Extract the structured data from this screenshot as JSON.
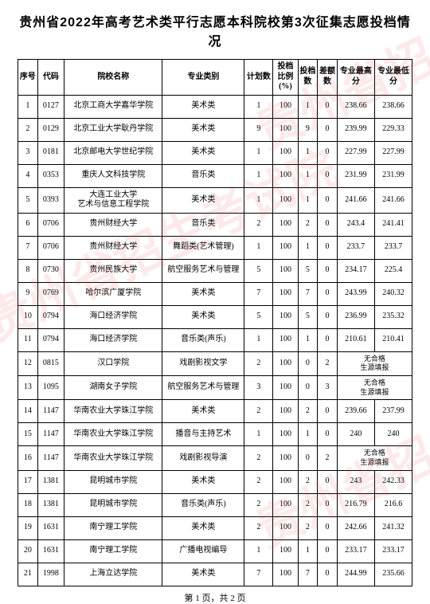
{
  "title": "贵州省2022年高考艺术类平行志愿本科院校第3次征集志愿投档情况",
  "watermark_text": "贵州省招生考试院",
  "footer": "第 1 页，共 2 页",
  "no_qualified_text": "无合格\n生源填报",
  "columns": {
    "seq": "序号",
    "code": "代码",
    "school": "院校名称",
    "major": "专业类别",
    "plan": "计划数",
    "ratio": "投档比例(%)",
    "cast": "投档数",
    "diff": "差额数",
    "high": "专业最高分",
    "low": "专业最低分"
  },
  "rows": [
    {
      "seq": "1",
      "code": "0127",
      "school": "北京工商大学嘉华学院",
      "major": "美术类",
      "plan": "1",
      "ratio": "100",
      "cast": "1",
      "diff": "0",
      "high": "238.66",
      "low": "238.66",
      "merged": false
    },
    {
      "seq": "2",
      "code": "0129",
      "school": "北京工业大学耿丹学院",
      "major": "美术类",
      "plan": "9",
      "ratio": "100",
      "cast": "9",
      "diff": "0",
      "high": "239.99",
      "low": "229.33",
      "merged": false
    },
    {
      "seq": "3",
      "code": "0181",
      "school": "北京邮电大学世纪学院",
      "major": "美术类",
      "plan": "1",
      "ratio": "100",
      "cast": "1",
      "diff": "0",
      "high": "227.99",
      "low": "227.99",
      "merged": false
    },
    {
      "seq": "4",
      "code": "0353",
      "school": "重庆人文科技学院",
      "major": "音乐类",
      "plan": "1",
      "ratio": "100",
      "cast": "1",
      "diff": "0",
      "high": "231.99",
      "low": "231.99",
      "merged": false
    },
    {
      "seq": "5",
      "code": "0393",
      "school": "大连工业大学\n艺术与信息工程学院",
      "major": "美术类",
      "plan": "1",
      "ratio": "100",
      "cast": "1",
      "diff": "0",
      "high": "241.66",
      "low": "241.66",
      "merged": false
    },
    {
      "seq": "6",
      "code": "0706",
      "school": "贵州财经大学",
      "major": "音乐类",
      "plan": "2",
      "ratio": "100",
      "cast": "2",
      "diff": "0",
      "high": "243.4",
      "low": "241.41",
      "merged": false
    },
    {
      "seq": "7",
      "code": "0706",
      "school": "贵州财经大学",
      "major": "舞蹈类(艺术管理)",
      "plan": "1",
      "ratio": "100",
      "cast": "1",
      "diff": "0",
      "high": "233.7",
      "low": "233.7",
      "merged": false
    },
    {
      "seq": "8",
      "code": "0730",
      "school": "贵州民族大学",
      "major": "航空服务艺术与管理",
      "plan": "5",
      "ratio": "100",
      "cast": "5",
      "diff": "0",
      "high": "234.17",
      "low": "225.4",
      "merged": false
    },
    {
      "seq": "9",
      "code": "0769",
      "school": "哈尔滨广厦学院",
      "major": "美术类",
      "plan": "7",
      "ratio": "100",
      "cast": "7",
      "diff": "0",
      "high": "243.99",
      "low": "240.32",
      "merged": false
    },
    {
      "seq": "10",
      "code": "0794",
      "school": "海口经济学院",
      "major": "美术类",
      "plan": "5",
      "ratio": "100",
      "cast": "5",
      "diff": "0",
      "high": "236.99",
      "low": "235.32",
      "merged": false
    },
    {
      "seq": "11",
      "code": "0794",
      "school": "海口经济学院",
      "major": "音乐类(声乐)",
      "plan": "1",
      "ratio": "100",
      "cast": "1",
      "diff": "0",
      "high": "210.61",
      "low": "210.41",
      "merged": false
    },
    {
      "seq": "12",
      "code": "0815",
      "school": "汉口学院",
      "major": "戏剧影视文学",
      "plan": "2",
      "ratio": "100",
      "cast": "0",
      "diff": "2",
      "high": "",
      "low": "",
      "merged": true
    },
    {
      "seq": "13",
      "code": "1095",
      "school": "湖南女子学院",
      "major": "航空服务艺术与管理",
      "plan": "3",
      "ratio": "100",
      "cast": "0",
      "diff": "3",
      "high": "",
      "low": "",
      "merged": true
    },
    {
      "seq": "14",
      "code": "1147",
      "school": "华南农业大学珠江学院",
      "major": "美术类",
      "plan": "2",
      "ratio": "100",
      "cast": "2",
      "diff": "0",
      "high": "239.66",
      "low": "237.99",
      "merged": false
    },
    {
      "seq": "15",
      "code": "1147",
      "school": "华南农业大学珠江学院",
      "major": "播音与主持艺术",
      "plan": "1",
      "ratio": "100",
      "cast": "1",
      "diff": "0",
      "high": "240",
      "low": "240",
      "merged": false
    },
    {
      "seq": "16",
      "code": "1147",
      "school": "华南农业大学珠江学院",
      "major": "戏剧影视导演",
      "plan": "2",
      "ratio": "100",
      "cast": "0",
      "diff": "2",
      "high": "",
      "low": "",
      "merged": true
    },
    {
      "seq": "17",
      "code": "1381",
      "school": "昆明城市学院",
      "major": "美术类",
      "plan": "2",
      "ratio": "100",
      "cast": "2",
      "diff": "0",
      "high": "243",
      "low": "242.33",
      "merged": false
    },
    {
      "seq": "18",
      "code": "1381",
      "school": "昆明城市学院",
      "major": "音乐类(声乐)",
      "plan": "2",
      "ratio": "100",
      "cast": "2",
      "diff": "0",
      "high": "216.79",
      "low": "216.6",
      "merged": false
    },
    {
      "seq": "19",
      "code": "1631",
      "school": "南宁理工学院",
      "major": "美术类",
      "plan": "2",
      "ratio": "100",
      "cast": "2",
      "diff": "0",
      "high": "242.66",
      "low": "241.32",
      "merged": false
    },
    {
      "seq": "20",
      "code": "1631",
      "school": "南宁理工学院",
      "major": "广播电视编导",
      "plan": "1",
      "ratio": "100",
      "cast": "1",
      "diff": "0",
      "high": "233.17",
      "low": "233.17",
      "merged": false
    },
    {
      "seq": "21",
      "code": "1998",
      "school": "上海立达学院",
      "major": "美术类",
      "plan": "7",
      "ratio": "100",
      "cast": "7",
      "diff": "0",
      "high": "244.99",
      "low": "235.66",
      "merged": false
    }
  ]
}
